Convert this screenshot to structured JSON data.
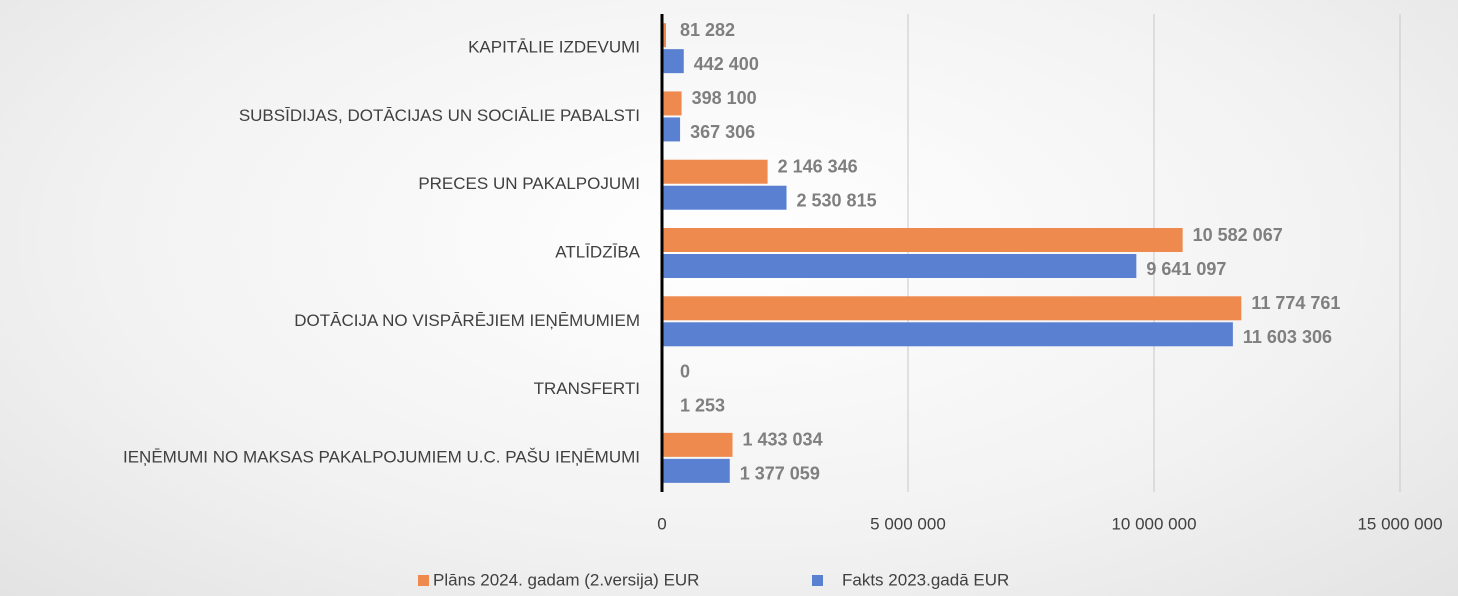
{
  "chart_data": {
    "type": "hbar",
    "categories": [
      "KAPITĀLIE IZDEVUMI",
      "SUBSĪDIJAS, DOTĀCIJAS UN SOCIĀLIE PABALSTI",
      "PRECES UN PAKALPOJUMI",
      "ATLĪDZĪBA",
      "DOTĀCIJA NO VISPĀRĒJIEM IEŅĒMUMIEM",
      "TRANSFERTI",
      "IEŅĒMUMI NO MAKSAS PAKALPOJUMIEM U.C. PAŠU IEŅĒMUMI"
    ],
    "series": [
      {
        "name": "Plāns 2024. gadam (2.versija) EUR",
        "color": "#ee8a4e",
        "values": [
          81282,
          398100,
          2146346,
          10582067,
          11774761,
          0,
          1433034
        ],
        "value_labels": [
          "81 282",
          "398 100",
          "2 146 346",
          "10 582 067",
          "11 774 761",
          "0",
          "1 433 034"
        ]
      },
      {
        "name": "Fakts 2023.gadā EUR",
        "color": "#5a80d2",
        "values": [
          442400,
          367306,
          2530815,
          9641097,
          11603306,
          1253,
          1377059
        ],
        "value_labels": [
          "442 400",
          "367 306",
          "2 530 815",
          "9 641 097",
          "11 603 306",
          "1 253",
          "1 377 059"
        ]
      }
    ],
    "xlim": [
      0,
      15000000
    ],
    "xticks": [
      0,
      {
        "value": 5000000,
        "label": "5 000 000"
      },
      {
        "value": 10000000,
        "label": "10 000 000"
      },
      {
        "value": 15000000,
        "label": "15 000 000"
      }
    ],
    "grid": true
  }
}
